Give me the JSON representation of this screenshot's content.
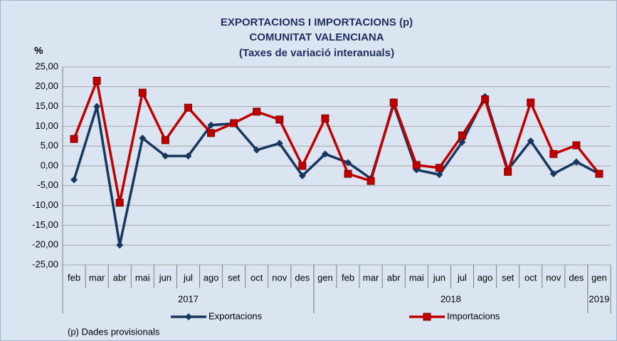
{
  "chart_data": {
    "type": "line",
    "title": [
      "EXPORTACIONS I IMPORTACIONS (p)",
      "COMUNITAT VALENCIANA",
      "(Taxes de variació interanuals)"
    ],
    "y_axis_label": "%",
    "note": "(p) Dades provisionals",
    "categories": [
      "feb",
      "mar",
      "abr",
      "mai",
      "jun",
      "jul",
      "ago",
      "set",
      "oct",
      "nov",
      "des",
      "gen",
      "feb",
      "mar",
      "abr",
      "mai",
      "jun",
      "jul",
      "ago",
      "set",
      "oct",
      "nov",
      "des",
      "gen"
    ],
    "year_groups": [
      {
        "label": "2017",
        "count": 11
      },
      {
        "label": "2018",
        "count": 12
      },
      {
        "label": "2019",
        "count": 1
      }
    ],
    "series": [
      {
        "name": "Exportacions",
        "color": "#17375e",
        "marker": "diamond",
        "values": [
          -3.5,
          15,
          -20,
          7,
          2.5,
          2.5,
          10.3,
          10.7,
          4,
          5.7,
          -2.5,
          3,
          0.8,
          -3.2,
          15.5,
          -1,
          -2.2,
          6,
          17.5,
          -1,
          6.3,
          -2,
          1,
          -2
        ]
      },
      {
        "name": "Importacions",
        "color": "#c00000",
        "marker": "square",
        "values": [
          6.8,
          21.5,
          -9.3,
          18.5,
          6.5,
          14.7,
          8.3,
          10.8,
          13.7,
          11.7,
          0,
          12,
          -2,
          -3.8,
          16,
          0.2,
          -0.5,
          7.7,
          16.8,
          -1.5,
          16,
          3,
          5.2,
          -2
        ]
      }
    ],
    "ylim": [
      -25,
      25
    ],
    "yticks": [
      {
        "value": -25,
        "label": "-25,00"
      },
      {
        "value": -20,
        "label": "-20,00"
      },
      {
        "value": -15,
        "label": "-15,00"
      },
      {
        "value": -10,
        "label": "-10,00"
      },
      {
        "value": -5,
        "label": "-5,00"
      },
      {
        "value": 0,
        "label": "0,00"
      },
      {
        "value": 5,
        "label": "5,00"
      },
      {
        "value": 10,
        "label": "10,00"
      },
      {
        "value": 15,
        "label": "15,00"
      },
      {
        "value": 20,
        "label": "20,00"
      },
      {
        "value": 25,
        "label": "25,00"
      }
    ],
    "grid": true
  }
}
